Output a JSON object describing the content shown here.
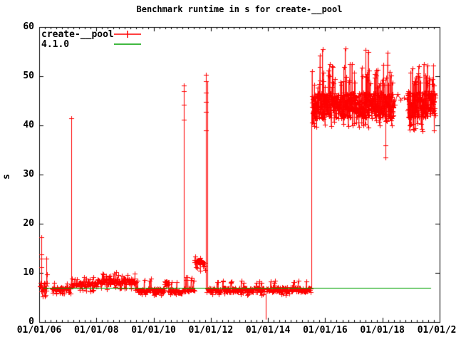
{
  "title": "Benchmark runtime in s for create-__pool",
  "legend": {
    "items": [
      {
        "label": "create-__pool",
        "color": "#ff0000",
        "marker": "plus-line"
      },
      {
        "label": "4.1.0",
        "color": "#00a000",
        "marker": "line"
      }
    ]
  },
  "axes": {
    "x": {
      "range": [
        2006,
        2020
      ],
      "minor_step": 0.2,
      "ticks": [
        {
          "t": 2006,
          "label": "01/01/06"
        },
        {
          "t": 2008,
          "label": "01/01/08"
        },
        {
          "t": 2010,
          "label": "01/01/10"
        },
        {
          "t": 2012,
          "label": "01/01/12"
        },
        {
          "t": 2014,
          "label": "01/01/14"
        },
        {
          "t": 2016,
          "label": "01/01/16"
        },
        {
          "t": 2018,
          "label": "01/01/18"
        },
        {
          "t": 2020,
          "label": "01/01/20"
        }
      ]
    },
    "y": {
      "label": "s",
      "range": [
        0,
        60
      ],
      "ticks": [
        0,
        10,
        20,
        30,
        40,
        50,
        60
      ]
    }
  },
  "chart_data": {
    "type": "line",
    "title": "Benchmark runtime in s for create-__pool",
    "xlabel": "",
    "ylabel": "s",
    "x_range_dates": [
      "01/01/06",
      "01/01/20"
    ],
    "ylim": [
      0,
      60
    ],
    "grid": false,
    "legend_position": "top-left-inside",
    "seed": 11,
    "series": [
      {
        "name": "create-__pool",
        "color": "#ff0000",
        "style": "linespoints-plus",
        "bands": [
          {
            "t0": 2006.03,
            "t1": 2006.28,
            "n": 22,
            "base": 7.2,
            "amp": 1.2,
            "up": {
              "p": 0.12,
              "lo": 8.5,
              "hi": 10.0
            },
            "down": {
              "p": 0.15,
              "lo": 5.2,
              "hi": 5.7
            }
          },
          {
            "t0": 2006.45,
            "t1": 2007.1,
            "n": 48,
            "base": 6.8,
            "amp": 0.4,
            "up": {
              "p": 0.05,
              "lo": 7.6,
              "hi": 8.2
            },
            "down": {
              "p": 0.12,
              "lo": 5.7,
              "hi": 6.1
            }
          },
          {
            "t0": 2007.12,
            "t1": 2008.05,
            "n": 68,
            "base": 7.7,
            "amp": 0.5,
            "up": {
              "p": 0.1,
              "lo": 8.6,
              "hi": 9.2
            },
            "down": {
              "p": 0.06,
              "lo": 6.2,
              "hi": 6.6
            }
          },
          {
            "t0": 2008.05,
            "t1": 2009.35,
            "n": 100,
            "base": 8.3,
            "amp": 0.6,
            "up": {
              "p": 0.12,
              "lo": 9.3,
              "hi": 10.2
            },
            "down": {
              "p": 0.08,
              "lo": 6.7,
              "hi": 7.1
            }
          },
          {
            "t0": 2009.35,
            "t1": 2010.38,
            "n": 80,
            "base": 6.4,
            "amp": 0.4,
            "up": {
              "p": 0.07,
              "lo": 8.1,
              "hi": 9.0
            },
            "down": {
              "p": 0.05,
              "lo": 5.5,
              "hi": 5.8
            }
          },
          {
            "t0": 2010.38,
            "t1": 2010.52,
            "n": 12,
            "base": 7.9,
            "amp": 0.45,
            "up": {
              "p": 0.05,
              "lo": 8.8,
              "hi": 9.3
            },
            "down": {
              "p": 0.0,
              "lo": 6.5,
              "hi": 6.8
            }
          },
          {
            "t0": 2010.52,
            "t1": 2011.04,
            "n": 40,
            "base": 6.3,
            "amp": 0.4,
            "up": {
              "p": 0.06,
              "lo": 7.8,
              "hi": 8.4
            },
            "down": {
              "p": 0.1,
              "lo": 5.4,
              "hi": 5.8
            }
          },
          {
            "t0": 2011.06,
            "t1": 2011.42,
            "n": 28,
            "base": 6.6,
            "amp": 0.4,
            "up": {
              "p": 0.15,
              "lo": 8.3,
              "hi": 9.2
            },
            "down": {
              "p": 0.05,
              "lo": 5.6,
              "hi": 5.9
            }
          },
          {
            "t0": 2011.43,
            "t1": 2011.8,
            "n": 30,
            "base": 11.8,
            "amp": 0.9,
            "up": {
              "p": 0.1,
              "lo": 13.0,
              "hi": 13.4
            },
            "down": {
              "p": 0.08,
              "lo": 10.3,
              "hi": 10.6
            }
          },
          {
            "t0": 2011.86,
            "t1": 2013.88,
            "n": 160,
            "base": 6.5,
            "amp": 0.5,
            "up": {
              "p": 0.09,
              "lo": 7.9,
              "hi": 8.4
            },
            "down": {
              "p": 0.07,
              "lo": 5.5,
              "hi": 5.9
            }
          },
          {
            "t0": 2013.95,
            "t1": 2015.5,
            "n": 120,
            "base": 6.6,
            "amp": 0.5,
            "up": {
              "p": 0.07,
              "lo": 8.0,
              "hi": 8.4
            },
            "down": {
              "p": 0.05,
              "lo": 5.5,
              "hi": 5.9
            }
          },
          {
            "t0": 2015.53,
            "t1": 2018.4,
            "n": 520,
            "base": 44.0,
            "amp": 2.7,
            "up": {
              "p": 0.12,
              "lo": 47.5,
              "hi": 52.5
            },
            "down": {
              "p": 0.05,
              "lo": 39.5,
              "hi": 41.0
            },
            "rare": {
              "p": 0.013,
              "lo": 53.5,
              "hi": 56.0
            }
          },
          {
            "t0": 2018.42,
            "t1": 2018.86,
            "n": 5,
            "base": 45.4,
            "amp": 1.3
          },
          {
            "t0": 2018.88,
            "t1": 2019.85,
            "n": 185,
            "base": 44.3,
            "amp": 2.7,
            "up": {
              "p": 0.12,
              "lo": 47.5,
              "hi": 52.5
            },
            "down": {
              "p": 0.05,
              "lo": 38.5,
              "hi": 40.5
            },
            "rare": {
              "p": 0.01,
              "lo": 52.5,
              "hi": 54.0
            }
          }
        ],
        "spikes": [
          {
            "t": 2006.07,
            "from": 7.0,
            "to": 17.2,
            "markers": [
              17.2,
              13.8,
              12.9,
              11.2
            ]
          },
          {
            "t": 2006.24,
            "from": 7.0,
            "to": 12.9,
            "markers": [
              12.9
            ]
          },
          {
            "t": 2007.12,
            "from": 7.5,
            "to": 41.5,
            "markers": [
              41.5
            ]
          },
          {
            "t": 2011.06,
            "from": 6.6,
            "to": 48.1,
            "markers": [
              48.1,
              47.0,
              44.2,
              41.2
            ]
          },
          {
            "t": 2011.84,
            "from": 6.8,
            "to": 50.3,
            "markers": [
              50.3,
              49.0,
              46.7,
              44.8,
              42.8,
              39.0
            ],
            "t2": 2011.89,
            "to2": 49.0
          },
          {
            "t": 2013.92,
            "from": 6.3,
            "to": 0.5,
            "markers": []
          },
          {
            "t": 2015.52,
            "from": 6.8,
            "to": 43.0,
            "markers": []
          },
          {
            "t": 2018.11,
            "from": 42.5,
            "to": 33.5,
            "markers": [
              33.5,
              36.0
            ]
          }
        ]
      },
      {
        "name": "4.1.0",
        "color": "#00a000",
        "style": "line",
        "value": 7.0,
        "t_start": 2006.15,
        "t_end": 2019.7
      }
    ]
  }
}
